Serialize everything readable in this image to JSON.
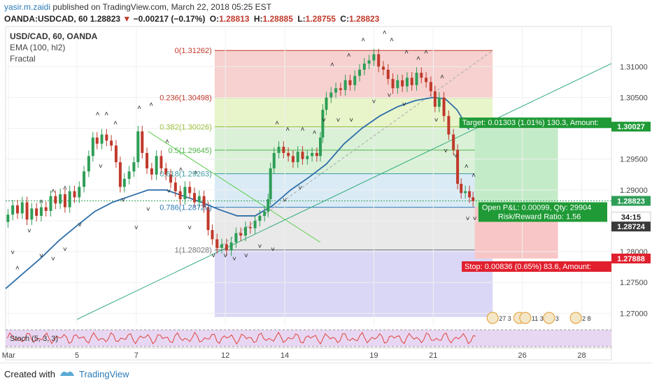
{
  "header": {
    "author": "yasir.m.zaidi",
    "published_text": "published on TradingView.com, March 22, 2018 05:25 EST",
    "symbol": "OANDA:USDCAD, 60",
    "last": "1.28823",
    "change_arrow": "▼",
    "change": "−0.00217 (−0.17%)",
    "o_label": "O:",
    "o": "1.28813",
    "h_label": "H:",
    "h": "1.28885",
    "l_label": "L:",
    "l": "1.28755",
    "c_label": "C:",
    "c": "1.28823"
  },
  "legend": [
    "USD/CAD, 60, OANDA",
    "EMA (100, hl2)",
    "Fractal"
  ],
  "footer": {
    "created": "Created with",
    "brand": "TradingView"
  },
  "colors": {
    "up": "#2e9e57",
    "down": "#c0392b",
    "ema": "#2e6ea8",
    "trend": "#2eaa7a",
    "fib_red": "#f5c9c7",
    "fib_lime": "#e4f3c2",
    "fib_green": "#d4efd1",
    "fib_blue": "#d3e8f3",
    "fib_gray": "#e5e5e5",
    "fib_violet": "#d5d3f4",
    "target": "#1f9a36",
    "stop": "#e0202e",
    "stoch": "#e8d7f3"
  },
  "chart_data": {
    "type": "candlestick",
    "symbol": "USD/CAD, 60, OANDA",
    "ylim": [
      1.268,
      1.3165
    ],
    "y_ticks": [
      "1.31000",
      "1.30500",
      "1.30000",
      "1.29500",
      "1.29000",
      "1.28500",
      "1.28000",
      "1.27500",
      "1.27000"
    ],
    "x_ticks": [
      {
        "label": "Mar",
        "pos": 0.5
      },
      {
        "label": "5",
        "pos": 12
      },
      {
        "label": "7",
        "pos": 22
      },
      {
        "label": "12",
        "pos": 37
      },
      {
        "label": "14",
        "pos": 47
      },
      {
        "label": "19",
        "pos": 62
      },
      {
        "label": "21",
        "pos": 72
      },
      {
        "label": "26",
        "pos": 87
      },
      {
        "label": "28",
        "pos": 97
      }
    ],
    "x_range": [
      0,
      102
    ],
    "close_path": [
      [
        0,
        1.2848
      ],
      [
        0.8,
        1.286
      ],
      [
        1.6,
        1.2875
      ],
      [
        2.4,
        1.2862
      ],
      [
        3.2,
        1.288
      ],
      [
        4,
        1.2852
      ],
      [
        4.8,
        1.287
      ],
      [
        5.6,
        1.2858
      ],
      [
        6.4,
        1.2872
      ],
      [
        7.2,
        1.2866
      ],
      [
        8,
        1.289
      ],
      [
        8.8,
        1.2878
      ],
      [
        9.6,
        1.2893
      ],
      [
        10.4,
        1.2872
      ],
      [
        11.2,
        1.2898
      ],
      [
        12,
        1.2888
      ],
      [
        12.8,
        1.2905
      ],
      [
        13.6,
        1.293
      ],
      [
        14.4,
        1.2955
      ],
      [
        15,
        1.2985
      ],
      [
        15.8,
        1.2975
      ],
      [
        16.6,
        1.299
      ],
      [
        17.4,
        1.298
      ],
      [
        18.2,
        1.2972
      ],
      [
        19,
        1.2945
      ],
      [
        19.6,
        1.2905
      ],
      [
        20.4,
        1.2918
      ],
      [
        21.2,
        1.293
      ],
      [
        22,
        1.2945
      ],
      [
        22.6,
        1.2995
      ],
      [
        23.4,
        1.296
      ],
      [
        24.2,
        1.2935
      ],
      [
        25,
        1.2925
      ],
      [
        25.8,
        1.2955
      ],
      [
        26.6,
        1.2935
      ],
      [
        27.4,
        1.2925
      ],
      [
        28.2,
        1.2912
      ],
      [
        29,
        1.2898
      ],
      [
        29.8,
        1.2885
      ],
      [
        30.6,
        1.2905
      ],
      [
        31.4,
        1.2895
      ],
      [
        32.2,
        1.288
      ],
      [
        33,
        1.289
      ],
      [
        33.8,
        1.2872
      ],
      [
        34.4,
        1.2835
      ],
      [
        35.2,
        1.282
      ],
      [
        36,
        1.2806
      ],
      [
        36.8,
        1.2812
      ],
      [
        37.6,
        1.2802
      ],
      [
        38.4,
        1.2815
      ],
      [
        39.2,
        1.283
      ],
      [
        40,
        1.2826
      ],
      [
        40.8,
        1.284
      ],
      [
        41.6,
        1.2838
      ],
      [
        42.4,
        1.285
      ],
      [
        43.2,
        1.2858
      ],
      [
        44,
        1.2865
      ],
      [
        44.4,
        1.2885
      ],
      [
        44.8,
        1.2935
      ],
      [
        45.6,
        1.296
      ],
      [
        46.4,
        1.297
      ],
      [
        47.2,
        1.296
      ],
      [
        48,
        1.2955
      ],
      [
        48.8,
        1.2945
      ],
      [
        49.6,
        1.2962
      ],
      [
        50.4,
        1.295
      ],
      [
        51.2,
        1.2955
      ],
      [
        52,
        1.296
      ],
      [
        52.8,
        1.2955
      ],
      [
        53.2,
        1.2985
      ],
      [
        53.6,
        1.303
      ],
      [
        54.4,
        1.305
      ],
      [
        55.2,
        1.3058
      ],
      [
        56,
        1.3065
      ],
      [
        56.8,
        1.3062
      ],
      [
        57.6,
        1.3078
      ],
      [
        58.4,
        1.307
      ],
      [
        59.2,
        1.3085
      ],
      [
        60,
        1.3095
      ],
      [
        60.8,
        1.3105
      ],
      [
        61.6,
        1.311
      ],
      [
        62.4,
        1.312
      ],
      [
        63.2,
        1.31
      ],
      [
        64,
        1.3095
      ],
      [
        64.8,
        1.308
      ],
      [
        65.6,
        1.3065
      ],
      [
        66.4,
        1.3078
      ],
      [
        67.2,
        1.3068
      ],
      [
        68,
        1.3082
      ],
      [
        68.8,
        1.307
      ],
      [
        69.6,
        1.309
      ],
      [
        70.4,
        1.3082
      ],
      [
        71.2,
        1.3075
      ],
      [
        72,
        1.306
      ],
      [
        72.6,
        1.3035
      ],
      [
        73.4,
        1.305
      ],
      [
        74.2,
        1.302
      ],
      [
        75,
        1.299
      ],
      [
        75.8,
        1.2965
      ],
      [
        76.4,
        1.291
      ],
      [
        77,
        1.2895
      ],
      [
        77.8,
        1.2898
      ],
      [
        78.4,
        1.2888
      ],
      [
        79,
        1.2882
      ]
    ],
    "ema_path": [
      [
        0,
        1.274
      ],
      [
        3,
        1.2765
      ],
      [
        6,
        1.279
      ],
      [
        9,
        1.2818
      ],
      [
        12,
        1.2842
      ],
      [
        15,
        1.2865
      ],
      [
        18,
        1.288
      ],
      [
        21,
        1.289
      ],
      [
        24,
        1.29
      ],
      [
        27,
        1.29
      ],
      [
        30,
        1.289
      ],
      [
        33,
        1.288
      ],
      [
        36,
        1.2868
      ],
      [
        39,
        1.2858
      ],
      [
        42,
        1.2858
      ],
      [
        45,
        1.2875
      ],
      [
        48,
        1.29
      ],
      [
        51,
        1.292
      ],
      [
        54,
        1.2942
      ],
      [
        57,
        1.2975
      ],
      [
        60,
        1.3
      ],
      [
        63,
        1.302
      ],
      [
        66,
        1.3035
      ],
      [
        69,
        1.3045
      ],
      [
        72,
        1.305
      ],
      [
        74,
        1.3048
      ],
      [
        76,
        1.303
      ],
      [
        78,
        1.2998
      ]
    ],
    "trendline_up": [
      [
        12,
        1.269
      ],
      [
        102,
        1.3105
      ]
    ],
    "trendline_down": [
      [
        24,
        1.2995
      ],
      [
        53,
        1.2815
      ]
    ],
    "fib_diagonal": [
      [
        35.2,
        1.2802
      ],
      [
        82,
        1.3126
      ]
    ],
    "fib_x_range": [
      35.2,
      82
    ],
    "fib_levels": [
      {
        "ratio": "0",
        "label": "0(1.31262)",
        "value": 1.31262
      },
      {
        "ratio": "0.236",
        "label": "0.236(1.30498)",
        "value": 1.30498
      },
      {
        "ratio": "0.382",
        "label": "0.382(1.30026)",
        "value": 1.30026
      },
      {
        "ratio": "0.5",
        "label": "0.5(1.29645)",
        "value": 1.29645
      },
      {
        "ratio": "0.618",
        "label": "0.618(1.29263)",
        "value": 1.29263
      },
      {
        "ratio": "0.786",
        "label": "0.786(1.28720)",
        "value": 1.2872
      },
      {
        "ratio": "1",
        "label": "1(1.28028)",
        "value": 1.28028
      }
    ],
    "fib_extension_bottom": 1.2694,
    "position": {
      "x_start": 79,
      "x_end": 93,
      "entry": 1.28724,
      "target": 1.30027,
      "stop": 1.27888,
      "target_text": "Target: 0.01303 (1.01%) 130.3, Amount:",
      "stop_text": "Stop: 0.00836 (0.65%) 83.6, Amount:",
      "pnl_text": "Open P&L: 0.00099, Qty: 29904",
      "rr_text": "Risk/Reward Ratio: 1.56"
    },
    "price_tags": [
      {
        "value": 1.28823,
        "label": "1.28823",
        "kind": "last"
      },
      {
        "value": 1.2872,
        "label": "34:15",
        "kind": "countdown"
      },
      {
        "value": 1.28724,
        "label": "1.28724",
        "kind": "entry"
      },
      {
        "value": 1.30027,
        "label": "1.30027",
        "kind": "target"
      },
      {
        "value": 1.27888,
        "label": "1.27888",
        "kind": "stop"
      }
    ],
    "last_price_line": 1.28823,
    "fractals_up": [
      [
        2,
        1.277
      ],
      [
        6,
        1.2878
      ],
      [
        8,
        1.2895
      ],
      [
        10,
        1.29
      ],
      [
        15.5,
        1.302
      ],
      [
        17,
        1.302
      ],
      [
        18.5,
        1.3005
      ],
      [
        22.5,
        1.303
      ],
      [
        24.5,
        1.3035
      ],
      [
        27.2,
        1.2975
      ],
      [
        29.5,
        1.293
      ],
      [
        32,
        1.2925
      ],
      [
        45.7,
        1.3005
      ],
      [
        47.5,
        1.2995
      ],
      [
        50,
        1.2995
      ],
      [
        52,
        1.299
      ],
      [
        55,
        1.31
      ],
      [
        57.8,
        1.3115
      ],
      [
        60.2,
        1.314
      ],
      [
        63.8,
        1.3152
      ],
      [
        65,
        1.314
      ],
      [
        67.5,
        1.312
      ],
      [
        69.5,
        1.311
      ],
      [
        70.8,
        1.312
      ],
      [
        73.5,
        1.308
      ],
      [
        77.6,
        1.2935
      ],
      [
        78.8,
        1.292
      ]
    ],
    "fractals_down": [
      [
        1.2,
        1.2795
      ],
      [
        4,
        1.283
      ],
      [
        6,
        1.279
      ],
      [
        8,
        1.2785
      ],
      [
        10,
        1.28
      ],
      [
        12.5,
        1.284
      ],
      [
        16,
        1.2935
      ],
      [
        19.8,
        1.288
      ],
      [
        22,
        1.2835
      ],
      [
        24,
        1.2865
      ],
      [
        27.5,
        1.2895
      ],
      [
        31,
        1.2835
      ],
      [
        35,
        1.279
      ],
      [
        37,
        1.279
      ],
      [
        38.5,
        1.2785
      ],
      [
        40.5,
        1.279
      ],
      [
        42.8,
        1.2805
      ],
      [
        45,
        1.28
      ],
      [
        47,
        1.288
      ],
      [
        49.6,
        1.29
      ],
      [
        53.6,
        1.301
      ],
      [
        56,
        1.301
      ],
      [
        58.2,
        1.301
      ],
      [
        62,
        1.304
      ],
      [
        64.6,
        1.305
      ],
      [
        67.1,
        1.3035
      ],
      [
        72.5,
        1.301
      ],
      [
        74.1,
        1.296
      ],
      [
        75.8,
        1.2952
      ],
      [
        77.8,
        1.285
      ],
      [
        79,
        1.285
      ]
    ],
    "stochastic": {
      "label": "Stoch (5, 3, 3)",
      "upper": 80,
      "lower": 20
    },
    "event_icons": [
      {
        "x": 82,
        "label": "27 3"
      },
      {
        "x": 86.5,
        "label": "6"
      },
      {
        "x": 87.5,
        "label": "11 3"
      },
      {
        "x": 91.5,
        "label": "3"
      },
      {
        "x": 96,
        "label": "2 8"
      }
    ]
  }
}
